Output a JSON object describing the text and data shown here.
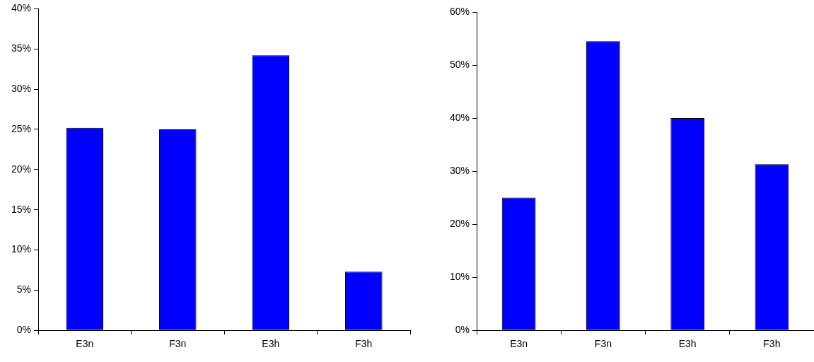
{
  "chart_data": [
    {
      "type": "bar",
      "categories": [
        "E3n",
        "F3n",
        "E3h",
        "F3h"
      ],
      "values": [
        25.2,
        25.0,
        34.2,
        7.3
      ],
      "color": "#0000ff",
      "ylim": [
        0,
        40
      ],
      "yticks": [
        {
          "value": 0,
          "label": "0%"
        },
        {
          "value": 5,
          "label": "5%"
        },
        {
          "value": 10,
          "label": "10%"
        },
        {
          "value": 15,
          "label": "15%"
        },
        {
          "value": 20,
          "label": "20%"
        },
        {
          "value": 25,
          "label": "25%"
        },
        {
          "value": 30,
          "label": "30%"
        },
        {
          "value": 35,
          "label": "35%"
        },
        {
          "value": 40,
          "label": "40%"
        }
      ],
      "grid": false,
      "legend": false
    },
    {
      "type": "bar",
      "categories": [
        "E3n",
        "F3n",
        "E3h",
        "F3h"
      ],
      "values": [
        25.0,
        54.5,
        40.0,
        31.3
      ],
      "color": "#0000ff",
      "ylim": [
        0,
        60
      ],
      "yticks": [
        {
          "value": 0,
          "label": "0%"
        },
        {
          "value": 10,
          "label": "10%"
        },
        {
          "value": 20,
          "label": "20%"
        },
        {
          "value": 30,
          "label": "30%"
        },
        {
          "value": 40,
          "label": "40%"
        },
        {
          "value": 50,
          "label": "50%"
        },
        {
          "value": 60,
          "label": "60%"
        }
      ],
      "grid": false,
      "legend": false
    }
  ]
}
